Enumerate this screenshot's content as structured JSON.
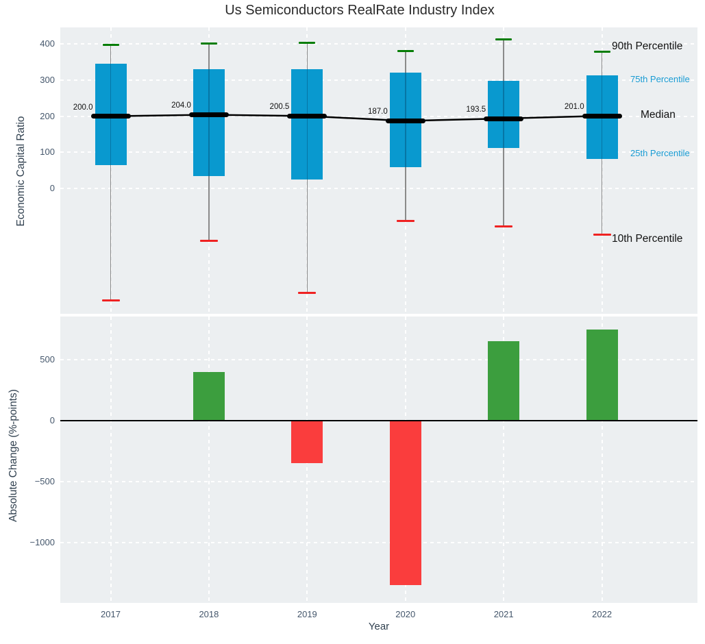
{
  "title": "Us Semiconductors RealRate Industry Index",
  "colors": {
    "plot_background": "#eceff1",
    "box_fill": "#0999cf",
    "bar_positive": "#3c9e3e",
    "bar_negative": "#fa3d3d",
    "cap_90th": "#067d06",
    "cap_10th": "#ef2222",
    "median_line": "#000000",
    "percentile_label_blue": "#189bd3",
    "tick_text": "#44566b"
  },
  "chart_data": [
    {
      "type": "boxplot-percentiles",
      "title": "Us Semiconductors RealRate Industry Index",
      "ylabel": "Economic Capital Ratio",
      "categories": [
        "2017",
        "2018",
        "2019",
        "2020",
        "2021",
        "2022"
      ],
      "yticks": [
        400,
        300,
        200,
        100,
        0
      ],
      "ylim": [
        -347,
        446
      ],
      "grid": true,
      "series": [
        {
          "name": "90th Percentile",
          "values": [
            398,
            402,
            403,
            381,
            412,
            379
          ]
        },
        {
          "name": "75th Percentile",
          "values": [
            345,
            331,
            331,
            321,
            297,
            314
          ]
        },
        {
          "name": "Median",
          "values": [
            200.0,
            204.0,
            200.5,
            187.0,
            193.5,
            201.0
          ]
        },
        {
          "name": "25th Percentile",
          "values": [
            65,
            34,
            25,
            59,
            112,
            82
          ]
        },
        {
          "name": "10th Percentile",
          "values": [
            -311,
            -146,
            -290,
            -91,
            -106,
            -128
          ]
        }
      ],
      "median_labels": [
        "200.0",
        "204.0",
        "200.5",
        "187.0",
        "193.5",
        "201.0"
      ],
      "annotations": {
        "p90": "90th Percentile",
        "p75": "75th Percentile",
        "median": "Median",
        "p25": "25th Percentile",
        "p10": "10th Percentile"
      },
      "legend_position": "right-inside"
    },
    {
      "type": "bar",
      "ylabel": "Absolute Change (%-points)",
      "xlabel": "Year",
      "categories": [
        "2017",
        "2018",
        "2019",
        "2020",
        "2021",
        "2022"
      ],
      "values": [
        null,
        400,
        -350,
        -1350,
        650,
        750
      ],
      "yticks": [
        500,
        0,
        -500,
        -1000
      ],
      "ytick_labels": [
        "500",
        "0",
        "−500",
        "−1000"
      ],
      "ylim": [
        -1494,
        854
      ],
      "grid": true,
      "zero_line": true
    }
  ],
  "x_axis": {
    "label": "Year",
    "tick_labels": [
      "2017",
      "2018",
      "2019",
      "2020",
      "2021",
      "2022"
    ]
  }
}
